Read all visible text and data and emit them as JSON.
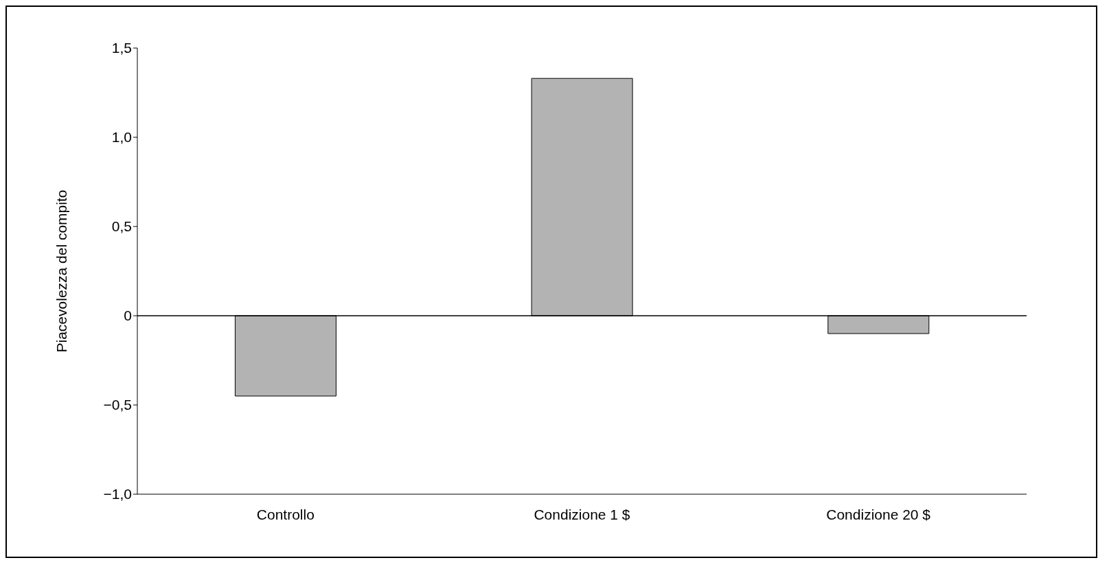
{
  "chart_data": {
    "type": "bar",
    "ylabel": "Piacevolezza del compito",
    "categories": [
      "Controllo",
      "Condizione 1 $",
      "Condizione 20 $"
    ],
    "values": [
      -0.45,
      1.33,
      -0.1
    ],
    "color": "#b3b3b3",
    "ylim": [
      -1.0,
      1.5
    ],
    "yticks": [
      {
        "value": -1.0,
        "label": "−1,0"
      },
      {
        "value": -0.5,
        "label": "−0,5"
      },
      {
        "value": 0,
        "label": "0"
      },
      {
        "value": 0.5,
        "label": "0,5"
      },
      {
        "value": 1.0,
        "label": "1,0"
      },
      {
        "value": 1.5,
        "label": "1,5"
      }
    ],
    "ref_lines": [
      {
        "axis": "y",
        "value": 0,
        "color": "#000000"
      }
    ],
    "grid": false,
    "legend": false
  }
}
